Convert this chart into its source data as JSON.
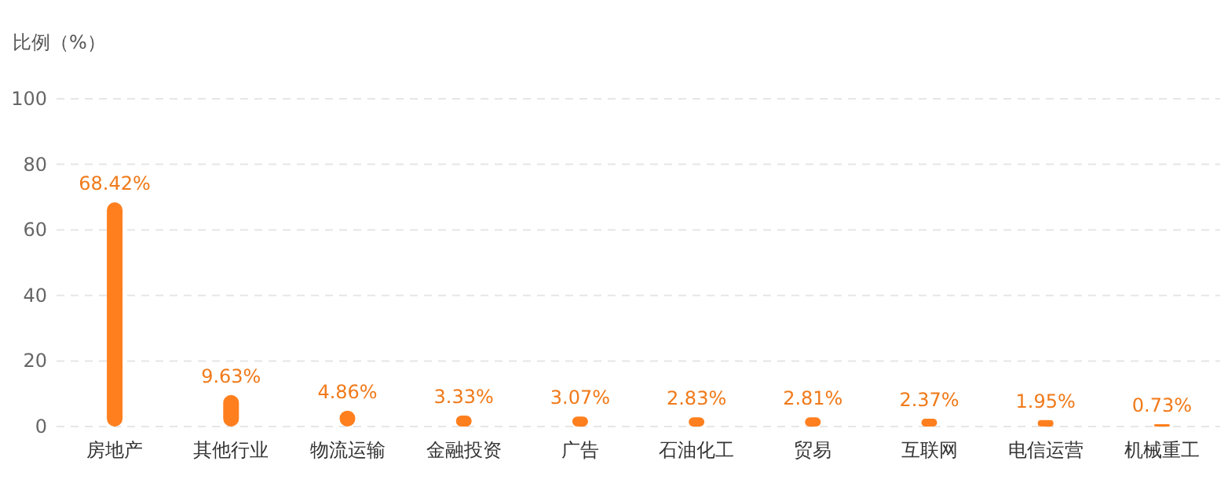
{
  "chart_data": {
    "type": "bar",
    "ylabel": "比例（%）",
    "categories": [
      "房地产",
      "其他行业",
      "物流运输",
      "金融投资",
      "广告",
      "石油化工",
      "贸易",
      "互联网",
      "电信运营",
      "机械重工"
    ],
    "values": [
      68.42,
      9.63,
      4.86,
      3.33,
      3.07,
      2.83,
      2.81,
      2.37,
      1.95,
      0.73
    ],
    "value_labels": [
      "68.42%",
      "9.63%",
      "4.86%",
      "3.33%",
      "3.07%",
      "2.83%",
      "2.81%",
      "2.37%",
      "1.95%",
      "0.73%"
    ],
    "color": "#ff7f1e",
    "ylim": [
      0,
      100
    ],
    "yticks": [
      0,
      20,
      40,
      60,
      80,
      100
    ],
    "grid": "y"
  }
}
